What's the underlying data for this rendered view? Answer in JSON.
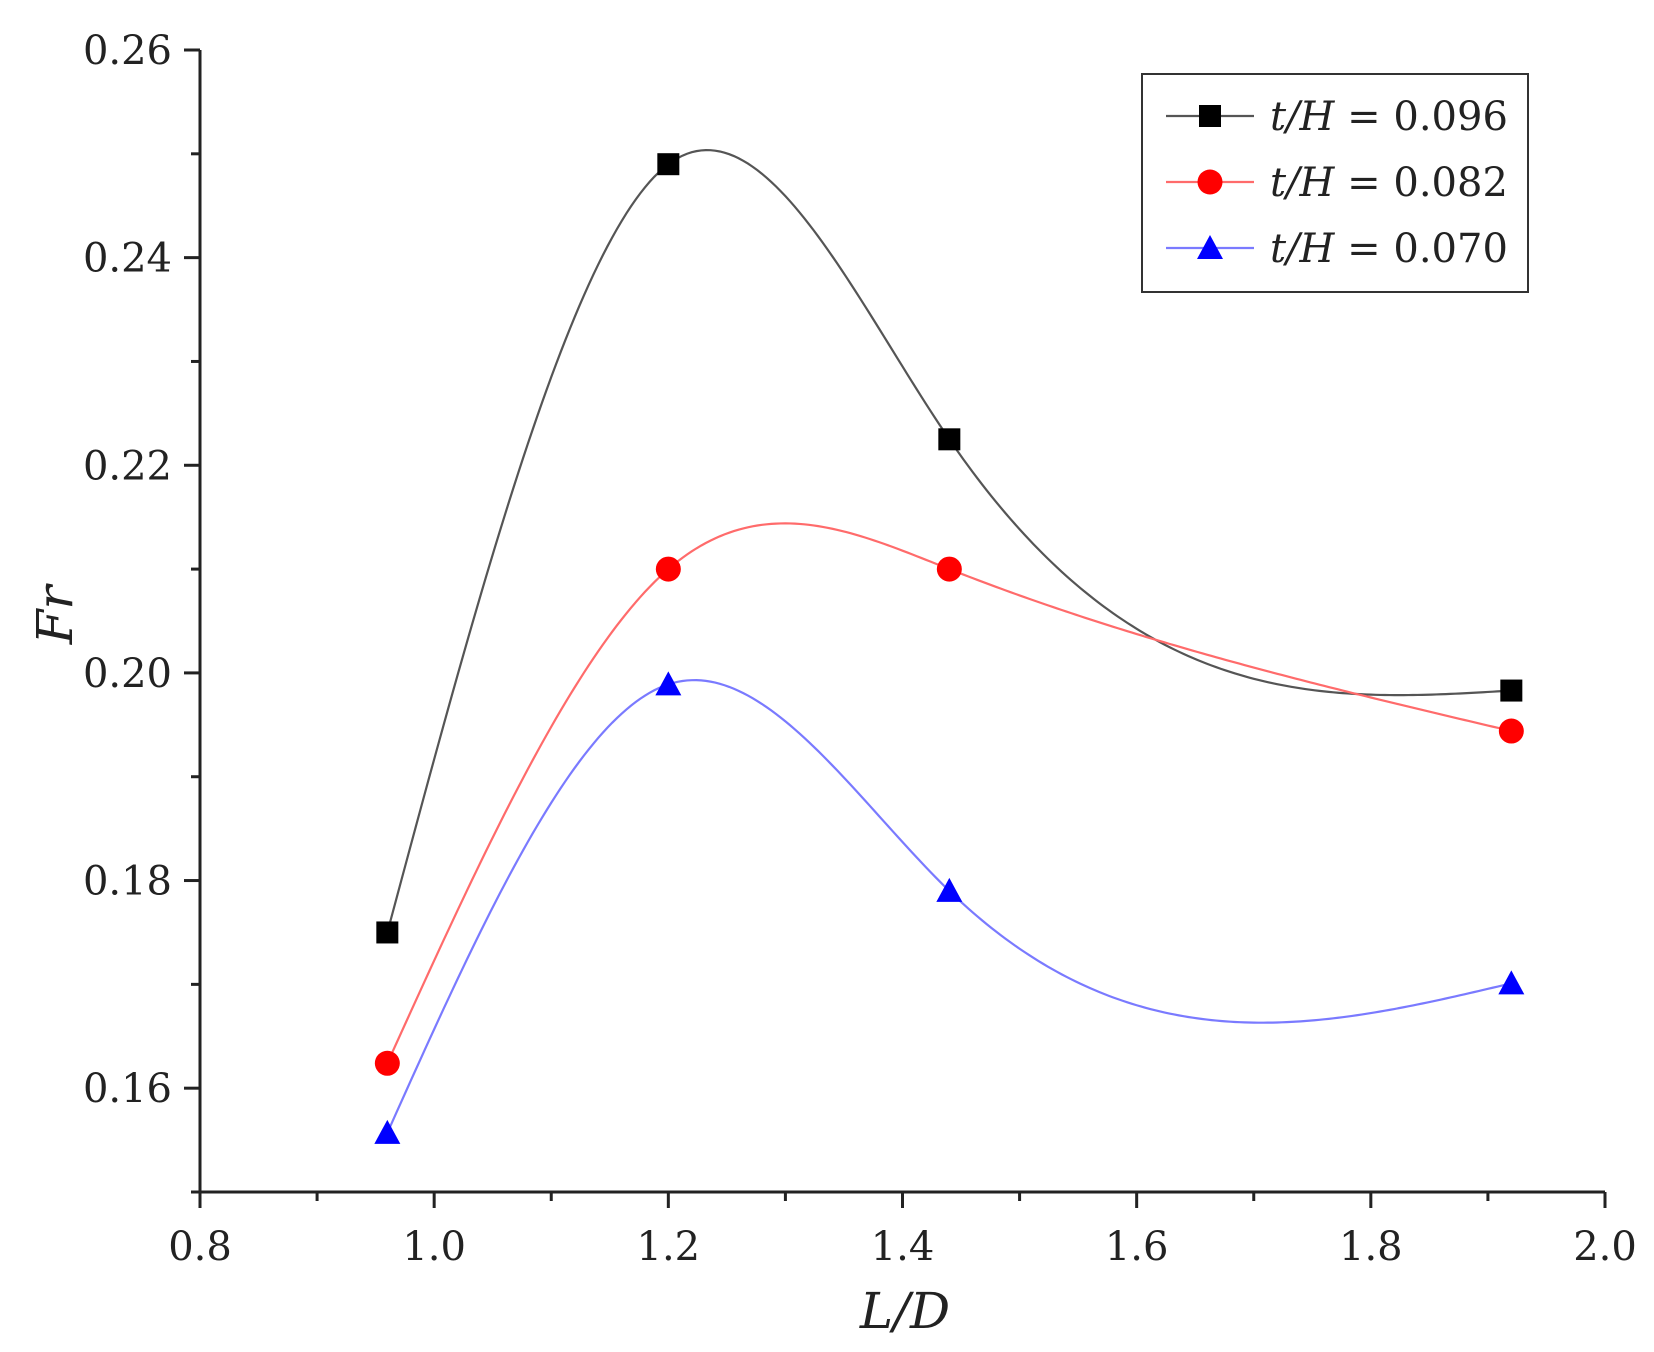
{
  "chart_data": {
    "type": "line",
    "title": "",
    "xlabel": "L/D",
    "ylabel": "Fr",
    "xlim": [
      0.8,
      2.0
    ],
    "ylim": [
      0.15,
      0.26
    ],
    "x_ticks": [
      "0.8",
      "1.0",
      "1.2",
      "1.4",
      "1.6",
      "1.8",
      "2.0"
    ],
    "y_ticks": [
      "0.16",
      "0.18",
      "0.20",
      "0.22",
      "0.24",
      "0.26"
    ],
    "grid": false,
    "legend_position": "top-right",
    "x": [
      0.96,
      1.2,
      1.44,
      1.92
    ],
    "series": [
      {
        "name": "t/H = 0.096",
        "label_var": "t/H",
        "label_value": " = 0.096",
        "marker": "square",
        "color": "#000000",
        "line_color": "#555555",
        "values": [
          0.175,
          0.249,
          0.2225,
          0.1983
        ]
      },
      {
        "name": "t/H = 0.082",
        "label_var": "t/H",
        "label_value": " = 0.082",
        "marker": "circle",
        "color": "#ff0000",
        "line_color": "#ff6b6b",
        "values": [
          0.1624,
          0.21,
          0.21,
          0.1944
        ]
      },
      {
        "name": "t/H = 0.070",
        "label_var": "t/H",
        "label_value": " = 0.070",
        "marker": "triangle",
        "color": "#0000ff",
        "line_color": "#7a7aff",
        "values": [
          0.1557,
          0.1989,
          0.179,
          0.1701
        ]
      }
    ]
  }
}
